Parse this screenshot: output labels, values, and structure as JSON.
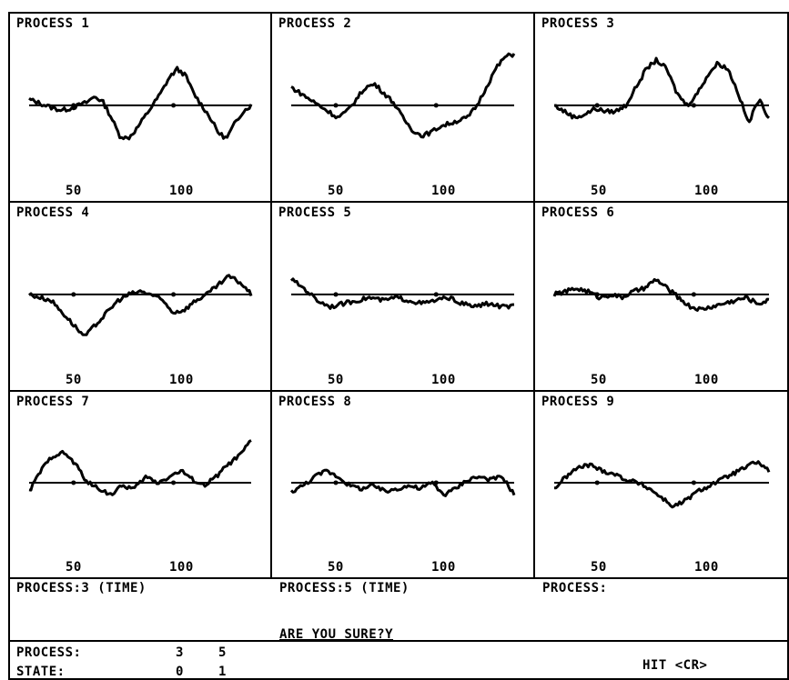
{
  "panels": [
    {
      "title": "PROCESS 1",
      "ticks": [
        "50",
        "100"
      ]
    },
    {
      "title": "PROCESS 2",
      "ticks": [
        "50",
        "100"
      ]
    },
    {
      "title": "PROCESS 3",
      "ticks": [
        "50",
        "100"
      ]
    },
    {
      "title": "PROCESS 4",
      "ticks": [
        "50",
        "100"
      ]
    },
    {
      "title": "PROCESS 5",
      "ticks": [
        "50",
        "100"
      ]
    },
    {
      "title": "PROCESS 6",
      "ticks": [
        "50",
        "100"
      ]
    },
    {
      "title": "PROCESS 7",
      "ticks": [
        "50",
        "100"
      ]
    },
    {
      "title": "PROCESS 8",
      "ticks": [
        "50",
        "100"
      ]
    },
    {
      "title": "PROCESS 9",
      "ticks": [
        "50",
        "100"
      ]
    }
  ],
  "selection": {
    "first": "PROCESS:3   (TIME)",
    "second": "PROCESS:5   (TIME)",
    "third": "PROCESS:",
    "prompt": "ARE YOU SURE?Y"
  },
  "status": {
    "process_label": "PROCESS:",
    "process_a": "3",
    "process_b": "5",
    "state_label": "STATE:",
    "state_a": "0",
    "state_b": "1",
    "hint": "HIT <CR>"
  },
  "chart_data": {
    "type": "line",
    "x_ticks": [
      50,
      100
    ],
    "series": [
      {
        "y": [
          0.1,
          0.05,
          0.0,
          -0.05,
          -0.08,
          -0.05,
          0.0,
          0.05,
          0.15,
          0.05,
          -0.2,
          -0.5,
          -0.55,
          -0.4,
          -0.2,
          0.0,
          0.2,
          0.45,
          0.6,
          0.5,
          0.2,
          0.0,
          -0.2,
          -0.45,
          -0.55,
          -0.3,
          -0.1,
          0.0
        ]
      },
      {
        "y": [
          0.3,
          0.2,
          0.1,
          0.0,
          -0.1,
          -0.2,
          -0.1,
          0.1,
          0.3,
          0.35,
          0.2,
          0.05,
          -0.2,
          -0.4,
          -0.5,
          -0.45,
          -0.35,
          -0.3,
          -0.25,
          -0.2,
          0.0,
          0.3,
          0.6,
          0.8,
          0.85
        ]
      },
      {
        "y": [
          0.0,
          -0.1,
          -0.2,
          -0.15,
          -0.05,
          -0.1,
          -0.1,
          0.0,
          0.3,
          0.6,
          0.75,
          0.6,
          0.2,
          0.0,
          0.2,
          0.5,
          0.7,
          0.6,
          0.2,
          -0.3,
          0.1,
          -0.2
        ]
      },
      {
        "y": [
          0.0,
          -0.05,
          -0.1,
          -0.3,
          -0.5,
          -0.7,
          -0.5,
          -0.3,
          -0.1,
          0.0,
          0.05,
          0.0,
          -0.1,
          -0.3,
          -0.25,
          -0.1,
          0.0,
          0.15,
          0.3,
          0.2,
          0.0
        ]
      },
      {
        "y": [
          0.25,
          0.1,
          -0.1,
          -0.2,
          -0.15,
          -0.1,
          -0.05,
          -0.1,
          -0.05,
          -0.1,
          -0.15,
          -0.1,
          -0.05,
          -0.15,
          -0.2,
          -0.15,
          -0.2,
          -0.2
        ]
      },
      {
        "y": [
          0.0,
          0.05,
          0.1,
          0.05,
          -0.05,
          0.0,
          -0.05,
          0.05,
          0.1,
          0.25,
          0.1,
          -0.05,
          -0.2,
          -0.25,
          -0.2,
          -0.15,
          -0.1,
          -0.05,
          -0.15,
          -0.1
        ]
      },
      {
        "y": [
          -0.15,
          0.2,
          0.45,
          0.5,
          0.3,
          0.0,
          -0.1,
          -0.2,
          -0.05,
          -0.1,
          0.1,
          0.0,
          0.1,
          0.2,
          0.05,
          -0.05,
          0.1,
          0.3,
          0.45,
          0.7
        ]
      },
      {
        "y": [
          -0.15,
          -0.05,
          0.1,
          0.2,
          0.1,
          -0.05,
          -0.1,
          -0.05,
          -0.15,
          -0.1,
          -0.05,
          -0.1,
          0.0,
          -0.2,
          -0.1,
          0.05,
          0.1,
          0.05,
          0.1,
          -0.2
        ]
      },
      {
        "y": [
          -0.1,
          0.1,
          0.25,
          0.3,
          0.2,
          0.15,
          0.05,
          0.0,
          -0.1,
          -0.25,
          -0.4,
          -0.3,
          -0.15,
          -0.05,
          0.05,
          0.15,
          0.25,
          0.35,
          0.2
        ]
      }
    ]
  }
}
